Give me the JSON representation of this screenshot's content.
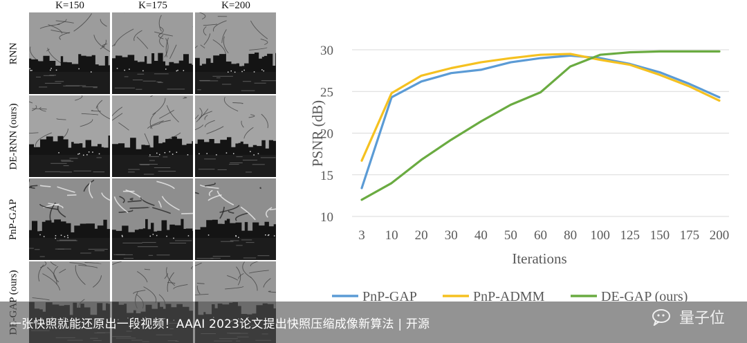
{
  "image_grid": {
    "columns": [
      "K=150",
      "K=175",
      "K=200"
    ],
    "rows": [
      "RNN",
      "DE-RNN (ours)",
      "PnP-GAP",
      "DE-GAP (ours)"
    ]
  },
  "chart_data": {
    "type": "line",
    "title": "",
    "xlabel": "Iterations",
    "ylabel": "PSNR (dB)",
    "categories": [
      "3",
      "10",
      "20",
      "30",
      "40",
      "50",
      "60",
      "80",
      "100",
      "125",
      "150",
      "175",
      "200"
    ],
    "ylim": [
      10,
      30
    ],
    "yticks": [
      10,
      15,
      20,
      25,
      30
    ],
    "grid": "horizontal",
    "legend_position": "bottom",
    "series": [
      {
        "name": "PnP-GAP",
        "color": "#5b9bd5",
        "values": [
          13.4,
          24.3,
          26.2,
          27.2,
          27.6,
          28.5,
          29.0,
          29.3,
          29.0,
          28.3,
          27.3,
          25.9,
          24.3
        ]
      },
      {
        "name": "PnP-ADMM",
        "color": "#f5c120",
        "values": [
          16.7,
          24.8,
          26.9,
          27.8,
          28.5,
          29.0,
          29.4,
          29.5,
          28.8,
          28.2,
          27.0,
          25.6,
          23.9
        ]
      },
      {
        "name": "DE-GAP (ours)",
        "color": "#6aab41",
        "values": [
          12.0,
          14.0,
          16.8,
          19.2,
          21.4,
          23.4,
          24.9,
          28.0,
          29.4,
          29.7,
          29.8,
          29.8,
          29.8
        ]
      }
    ]
  },
  "banner": {
    "text": "一张快照就能还原出一段视频！AAAI 2023论文提出快照压缩成像新算法 | 开源",
    "watermark": "量子位"
  }
}
